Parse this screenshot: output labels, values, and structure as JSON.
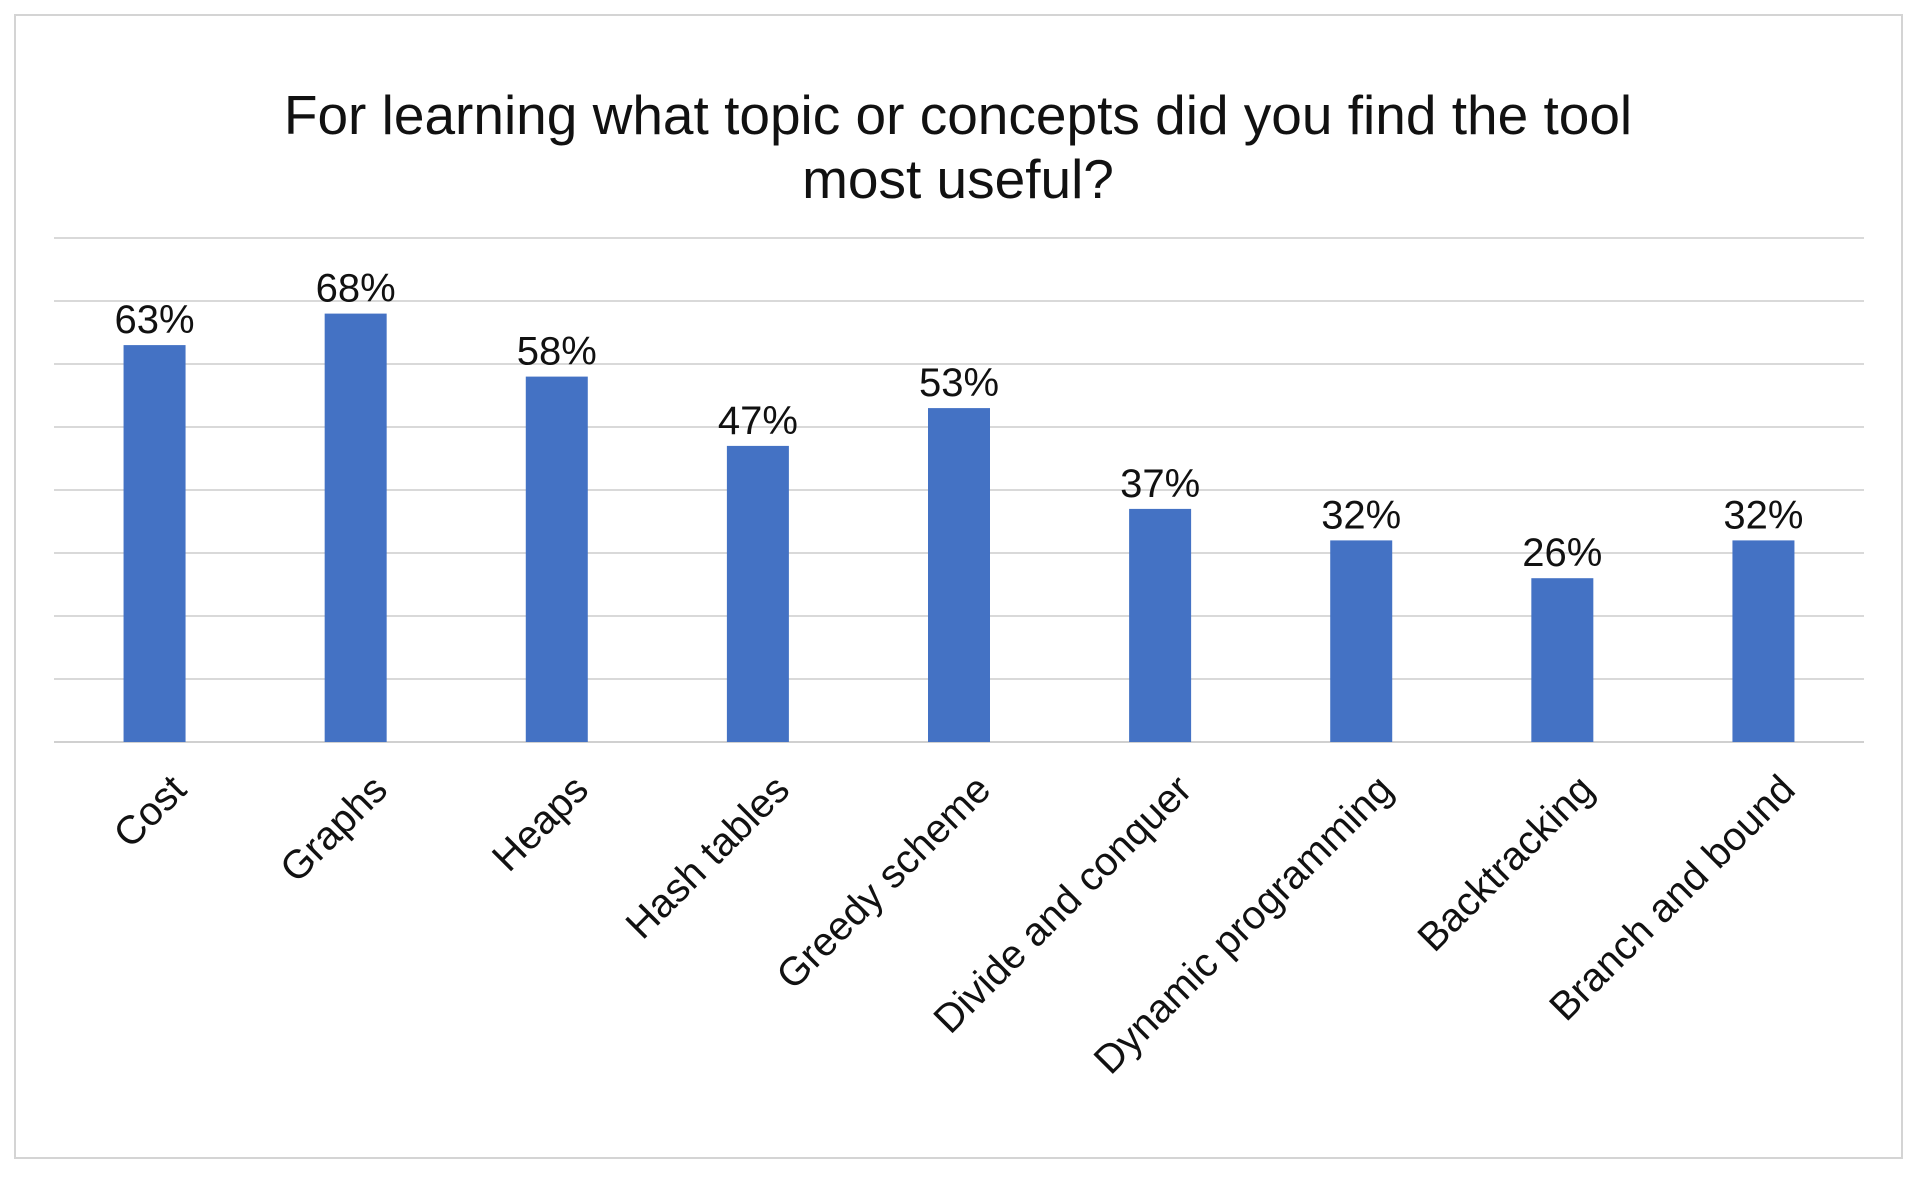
{
  "chart_data": {
    "type": "bar",
    "title_lines": [
      "For learning what topic or concepts did you find the tool",
      "most useful?"
    ],
    "categories": [
      "Cost",
      "Graphs",
      "Heaps",
      "Hash tables",
      "Greedy scheme",
      "Divide and conquer",
      "Dynamic programming",
      "Backtracking",
      "Branch and bound"
    ],
    "values": [
      63,
      68,
      58,
      47,
      53,
      37,
      32,
      26,
      32
    ],
    "data_labels": [
      "63%",
      "68%",
      "58%",
      "47%",
      "53%",
      "37%",
      "32%",
      "26%",
      "32%"
    ],
    "ylim": [
      0,
      80
    ],
    "gridline_step": 10,
    "grid": true,
    "legend": "none",
    "bar_color": "#4472c4"
  }
}
